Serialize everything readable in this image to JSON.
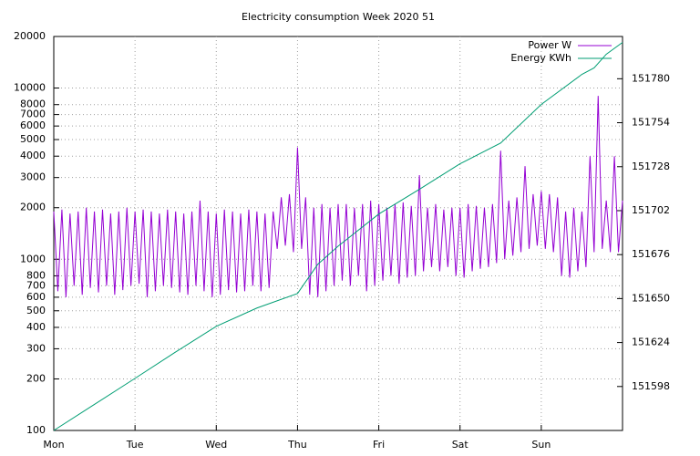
{
  "chart_data": {
    "type": "line",
    "title": "Electricity consumption Week 2020 51",
    "xlim": [
      0,
      7
    ],
    "xticks": [
      {
        "value": 0,
        "label": "Mon"
      },
      {
        "value": 1,
        "label": "Tue"
      },
      {
        "value": 2,
        "label": "Wed"
      },
      {
        "value": 3,
        "label": "Thu"
      },
      {
        "value": 4,
        "label": "Fri"
      },
      {
        "value": 5,
        "label": "Sat"
      },
      {
        "value": 6,
        "label": "Sun"
      }
    ],
    "ylim": [
      100,
      20000
    ],
    "ylog": true,
    "yticks": [
      100,
      200,
      300,
      400,
      500,
      600,
      700,
      800,
      1000,
      2000,
      3000,
      4000,
      5000,
      6000,
      7000,
      8000,
      10000,
      20000
    ],
    "y2lim": [
      151572,
      151805
    ],
    "y2ticks": [
      151598,
      151624,
      151650,
      151676,
      151702,
      151728,
      151754,
      151780
    ],
    "grid": true,
    "legend": "top-right",
    "series": [
      {
        "name": "Power W",
        "color": "#9400d3",
        "x": [
          0,
          0.05,
          0.1,
          0.15,
          0.2,
          0.25,
          0.3,
          0.35,
          0.4,
          0.45,
          0.5,
          0.55,
          0.6,
          0.65,
          0.7,
          0.75,
          0.8,
          0.85,
          0.9,
          0.95,
          1,
          1.05,
          1.1,
          1.15,
          1.2,
          1.25,
          1.3,
          1.35,
          1.4,
          1.45,
          1.5,
          1.55,
          1.6,
          1.65,
          1.7,
          1.75,
          1.8,
          1.85,
          1.9,
          1.95,
          2,
          2.05,
          2.1,
          2.15,
          2.2,
          2.25,
          2.3,
          2.35,
          2.4,
          2.45,
          2.5,
          2.55,
          2.6,
          2.65,
          2.7,
          2.75,
          2.8,
          2.85,
          2.9,
          2.95,
          3,
          3.05,
          3.1,
          3.15,
          3.2,
          3.25,
          3.3,
          3.35,
          3.4,
          3.45,
          3.5,
          3.55,
          3.6,
          3.65,
          3.7,
          3.75,
          3.8,
          3.85,
          3.9,
          3.95,
          4,
          4.05,
          4.1,
          4.15,
          4.2,
          4.25,
          4.3,
          4.35,
          4.4,
          4.45,
          4.5,
          4.55,
          4.6,
          4.65,
          4.7,
          4.75,
          4.8,
          4.85,
          4.9,
          4.95,
          5,
          5.05,
          5.1,
          5.15,
          5.2,
          5.25,
          5.3,
          5.35,
          5.4,
          5.45,
          5.5,
          5.55,
          5.6,
          5.65,
          5.7,
          5.75,
          5.8,
          5.85,
          5.9,
          5.95,
          6,
          6.05,
          6.1,
          6.15,
          6.2,
          6.25,
          6.3,
          6.35,
          6.4,
          6.45,
          6.5,
          6.55,
          6.6,
          6.65,
          6.7,
          6.75,
          6.8,
          6.85,
          6.9,
          6.95,
          7
        ],
        "values": [
          1900,
          650,
          1950,
          600,
          1850,
          700,
          1900,
          620,
          2000,
          680,
          1900,
          640,
          1950,
          700,
          1850,
          620,
          1900,
          660,
          2000,
          700,
          1900,
          720,
          1950,
          600,
          1900,
          650,
          1850,
          700,
          1950,
          680,
          1900,
          640,
          1850,
          620,
          1900,
          700,
          2200,
          650,
          1900,
          600,
          1850,
          620,
          1950,
          660,
          1900,
          640,
          1850,
          650,
          1950,
          700,
          1900,
          650,
          1850,
          680,
          1900,
          1150,
          2300,
          1200,
          2400,
          1100,
          4500,
          1150,
          2300,
          620,
          2000,
          600,
          2100,
          650,
          2000,
          700,
          2100,
          750,
          2100,
          700,
          2000,
          800,
          2100,
          650,
          2200,
          700,
          2100,
          750,
          2000,
          800,
          2100,
          720,
          2150,
          780,
          2050,
          800,
          3100,
          850,
          2000,
          900,
          2100,
          850,
          1950,
          900,
          2000,
          800,
          2000,
          780,
          2100,
          850,
          2050,
          880,
          2000,
          900,
          2100,
          950,
          4300,
          1000,
          2200,
          1050,
          2300,
          1100,
          3500,
          1150,
          2400,
          1200,
          2500,
          1150,
          2400,
          1100,
          2300,
          800,
          1900,
          780,
          2000,
          850,
          1900,
          900,
          4000,
          1100,
          9000,
          1150,
          2200,
          1100,
          4000,
          1100,
          2200
        ]
      },
      {
        "name": "Energy KWh",
        "color": "#009e73",
        "axis": "y2",
        "x": [
          0,
          0.5,
          1,
          1.5,
          2,
          2.5,
          3,
          3.25,
          3.5,
          4,
          4.5,
          5,
          5.5,
          6,
          6.5,
          6.65,
          6.8,
          7
        ],
        "values": [
          151572,
          151587.4,
          151602.8,
          151618.4,
          151633.6,
          151644.4,
          151653,
          151670.3,
          151681,
          151700,
          151714.6,
          151729.7,
          151742,
          151764.8,
          151782.6,
          151786.4,
          151794.5,
          151801.5
        ]
      }
    ]
  }
}
